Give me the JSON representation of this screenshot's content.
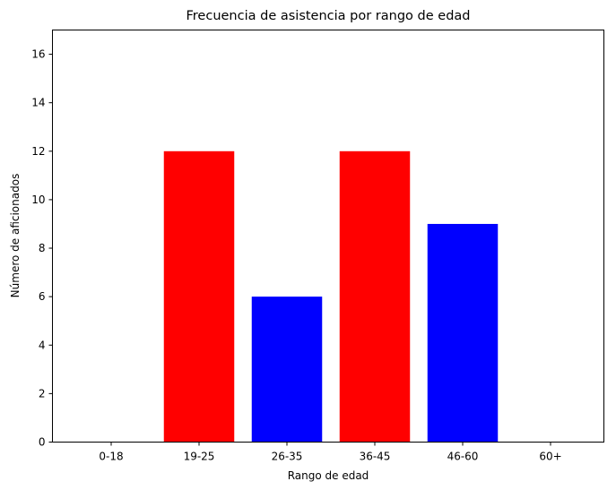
{
  "chart_data": {
    "type": "bar",
    "title": "Frecuencia de asistencia por rango de edad",
    "xlabel": "Rango de edad",
    "ylabel": "Número de aficionados",
    "categories": [
      "0-18",
      "19-25",
      "26-35",
      "36-45",
      "46-60",
      "60+"
    ],
    "values": [
      0,
      12,
      6,
      12,
      9,
      0
    ],
    "bar_colors": [
      "#ff0000",
      "#ff0000",
      "#0000ff",
      "#ff0000",
      "#0000ff",
      "#0000ff"
    ],
    "ylim": [
      0,
      17
    ],
    "yticks": [
      0,
      2,
      4,
      6,
      8,
      10,
      12,
      14,
      16
    ],
    "grid": false,
    "legend": "none"
  }
}
